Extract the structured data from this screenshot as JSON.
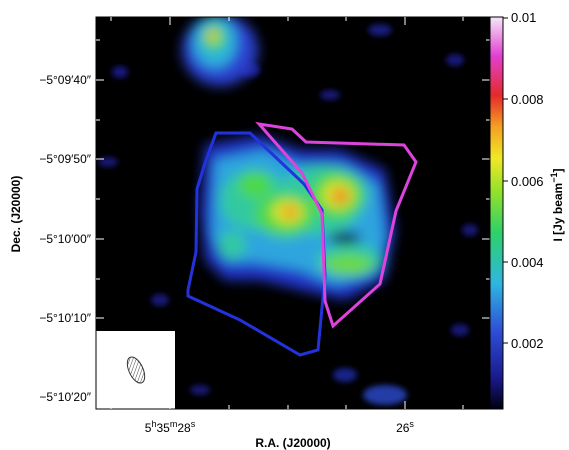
{
  "figure": {
    "x_axis": {
      "label": "R.A. (J20000)",
      "tick_labels": [
        {
          "text": "5h35m28s",
          "h": "5",
          "m": "35",
          "s": "28"
        },
        {
          "text": "26s",
          "value": "26"
        }
      ]
    },
    "y_axis": {
      "label": "Dec. (J20000)",
      "tick_labels": [
        "−5°09′40″",
        "−5°09′50″",
        "−5°10′00″",
        "−5°10′10″",
        "−5°10′20″"
      ]
    },
    "colorbar": {
      "label_main": "I [Jy beam",
      "label_exp": "−1",
      "label_close": "]",
      "tick_labels": [
        "0.01",
        "0.008",
        "0.006",
        "0.004",
        "0.002"
      ],
      "colormap": "cubehelix-rainbow (black-blue-cyan-green-yellow-red-magenta-white)"
    },
    "regions": [
      {
        "name": "blue-polygon",
        "color": "#2233dd"
      },
      {
        "name": "magenta-polygon",
        "color": "#dd44dd"
      }
    ],
    "beam_inset": {
      "background": "#ffffff",
      "hatch": "ellipse"
    }
  }
}
